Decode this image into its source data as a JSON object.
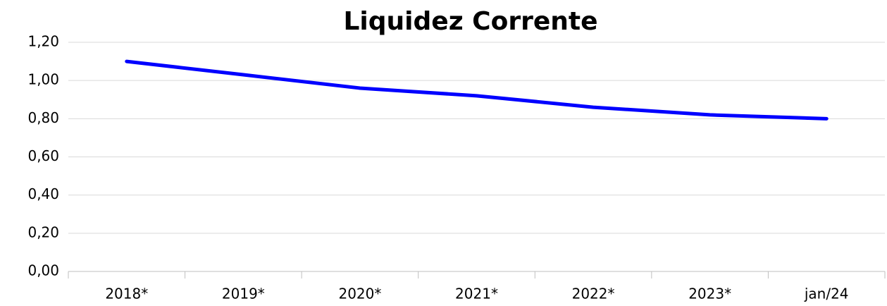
{
  "chart_data": {
    "type": "line",
    "title": "Liquidez Corrente",
    "categories": [
      "2018*",
      "2019*",
      "2020*",
      "2021*",
      "2022*",
      "2023*",
      "jan/24"
    ],
    "series": [
      {
        "name": "Liquidez Corrente",
        "color": "#0000ff",
        "values": [
          1.1,
          1.03,
          0.96,
          0.92,
          0.86,
          0.82,
          0.8
        ]
      }
    ],
    "ylim": [
      0,
      1.2
    ],
    "yticks": [
      {
        "value": 0,
        "label": "0,00"
      },
      {
        "value": 0.2,
        "label": "0,20"
      },
      {
        "value": 0.4,
        "label": "0,40"
      },
      {
        "value": 0.6,
        "label": "0,60"
      },
      {
        "value": 0.8,
        "label": "0,80"
      },
      {
        "value": 1.0,
        "label": "1,00"
      },
      {
        "value": 1.2,
        "label": "1,20"
      }
    ],
    "grid": true
  }
}
